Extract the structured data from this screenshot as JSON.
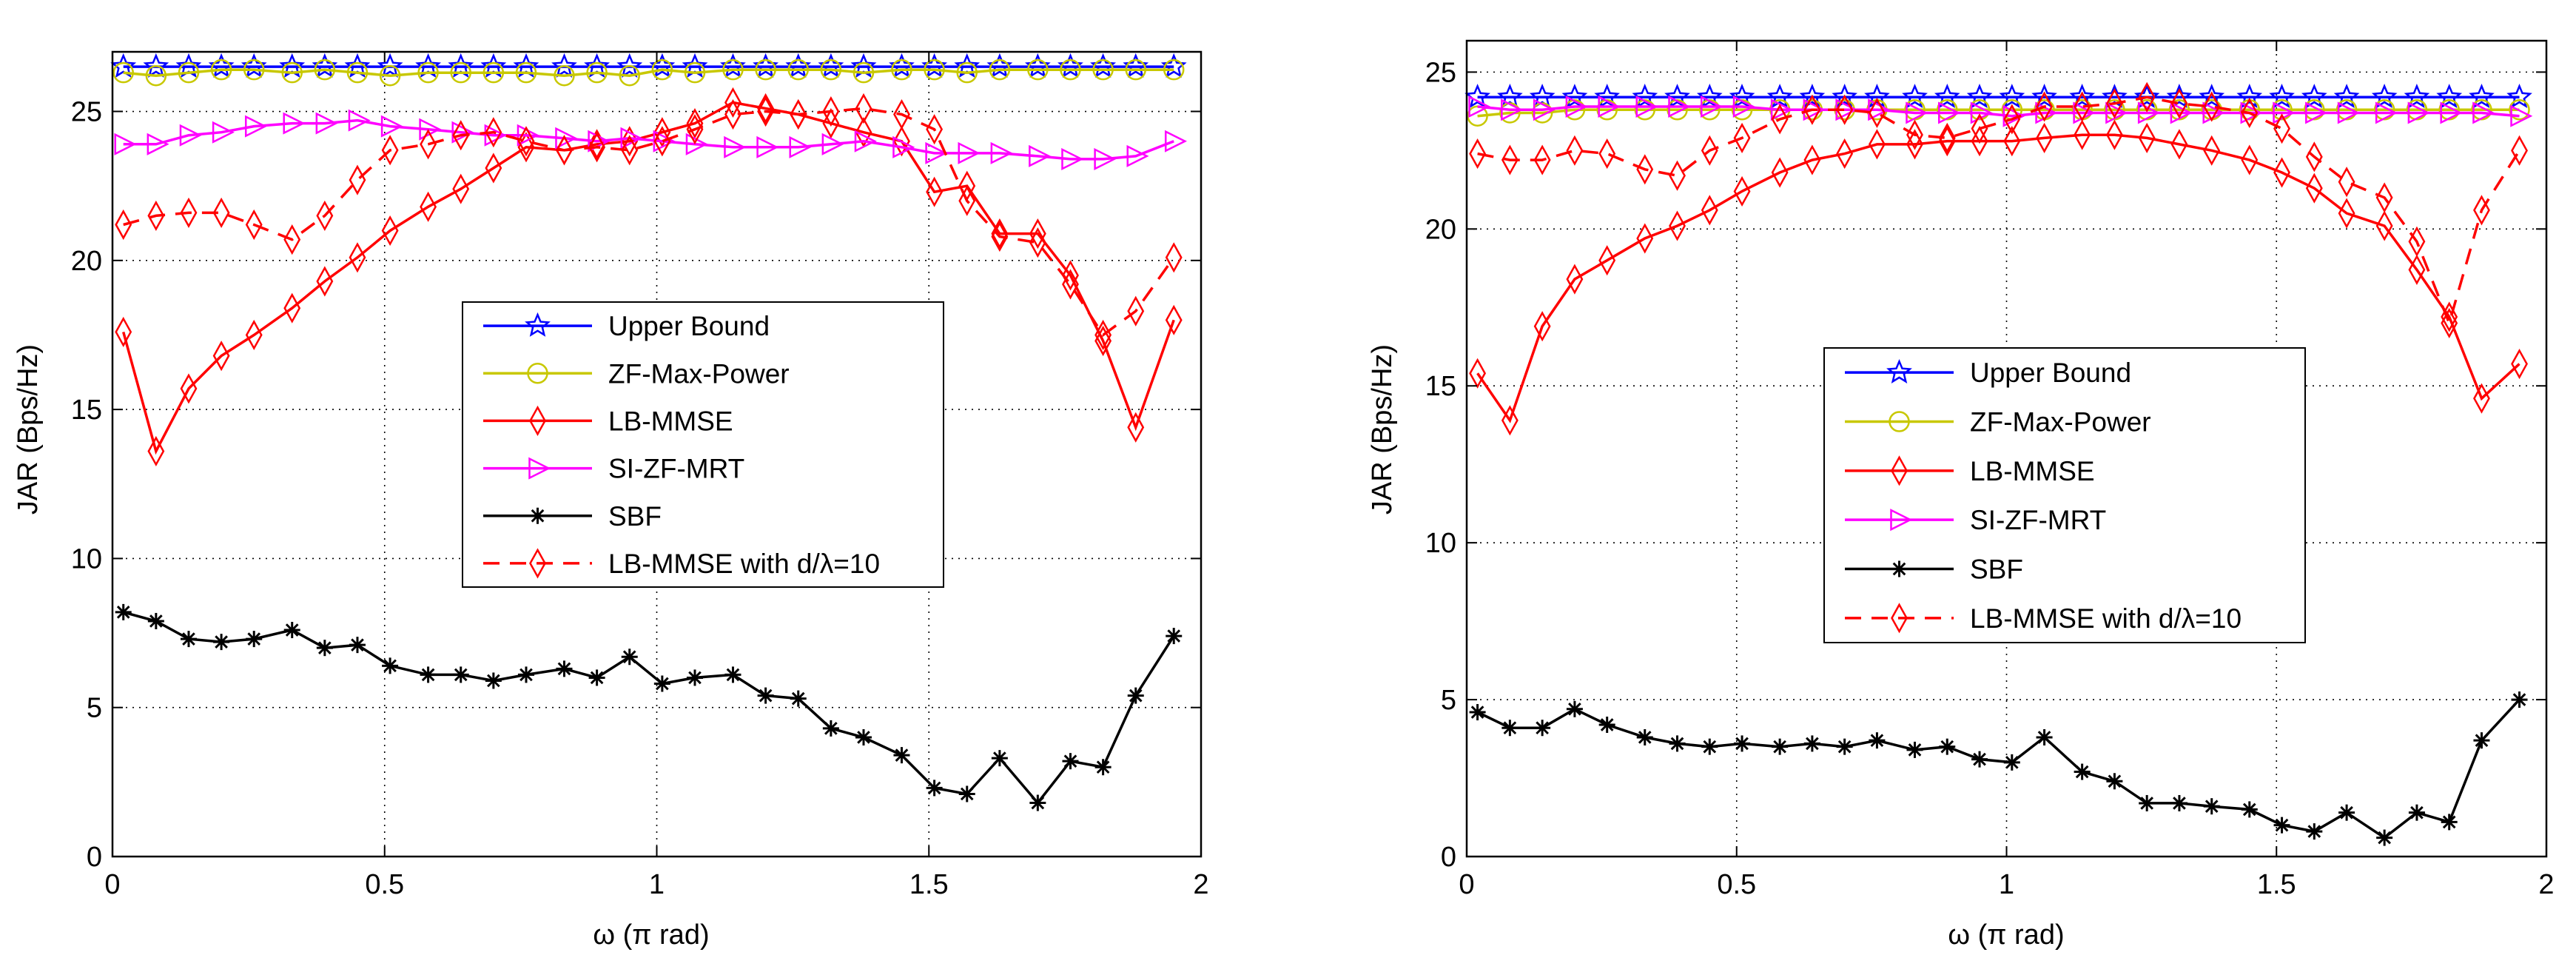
{
  "chart_data": [
    {
      "type": "line",
      "xlabel": "ω (π rad)",
      "ylabel": "JAR (Bps/Hz)",
      "xlim": [
        0,
        2
      ],
      "ylim": [
        0,
        27
      ],
      "xticks": [
        0,
        0.5,
        1,
        1.5,
        2
      ],
      "xtick_labels": [
        "0",
        "0.5",
        "1",
        "1.5",
        "2"
      ],
      "yticks": [
        0,
        5,
        10,
        15,
        20,
        25
      ],
      "ytick_labels": [
        "0",
        "5",
        "10",
        "15",
        "20",
        "25"
      ],
      "grid": true,
      "legend_position": "center-right",
      "x": [
        0.02,
        0.08,
        0.14,
        0.2,
        0.26,
        0.33,
        0.39,
        0.45,
        0.51,
        0.58,
        0.64,
        0.7,
        0.76,
        0.83,
        0.89,
        0.95,
        1.01,
        1.07,
        1.14,
        1.2,
        1.26,
        1.32,
        1.38,
        1.45,
        1.51,
        1.57,
        1.63,
        1.7,
        1.76,
        1.82,
        1.88,
        1.95
      ],
      "series": [
        {
          "name": "Upper Bound",
          "color": "#0000ff",
          "marker": "star",
          "dash": "solid",
          "values": [
            26.5,
            26.5,
            26.5,
            26.5,
            26.5,
            26.5,
            26.5,
            26.5,
            26.5,
            26.5,
            26.5,
            26.5,
            26.5,
            26.5,
            26.5,
            26.5,
            26.5,
            26.5,
            26.5,
            26.5,
            26.5,
            26.5,
            26.5,
            26.5,
            26.5,
            26.5,
            26.5,
            26.5,
            26.5,
            26.5,
            26.5,
            26.5
          ]
        },
        {
          "name": "ZF-Max-Power",
          "color": "#c8c800",
          "marker": "circle",
          "dash": "solid",
          "values": [
            26.3,
            26.2,
            26.3,
            26.4,
            26.4,
            26.3,
            26.4,
            26.3,
            26.2,
            26.3,
            26.3,
            26.3,
            26.3,
            26.2,
            26.3,
            26.2,
            26.4,
            26.3,
            26.4,
            26.4,
            26.4,
            26.4,
            26.3,
            26.4,
            26.4,
            26.3,
            26.4,
            26.4,
            26.4,
            26.4,
            26.4,
            26.4
          ]
        },
        {
          "name": "LB-MMSE",
          "color": "#ff0000",
          "marker": "diamond",
          "dash": "solid",
          "values": [
            17.6,
            13.6,
            15.7,
            16.8,
            17.5,
            18.4,
            19.3,
            20.1,
            21.0,
            21.8,
            22.4,
            23.1,
            23.8,
            23.7,
            23.9,
            24.0,
            24.3,
            24.6,
            25.3,
            25.1,
            24.9,
            24.6,
            24.3,
            24.0,
            22.3,
            22.5,
            20.9,
            20.9,
            19.5,
            17.3,
            14.4,
            18.0
          ]
        },
        {
          "name": "SI-ZF-MRT",
          "color": "#ff00ff",
          "marker": "triangle-right",
          "dash": "solid",
          "values": [
            23.9,
            23.9,
            24.2,
            24.3,
            24.5,
            24.6,
            24.6,
            24.7,
            24.5,
            24.4,
            24.3,
            24.2,
            24.2,
            24.1,
            24.0,
            24.1,
            24.0,
            23.9,
            23.8,
            23.8,
            23.8,
            23.9,
            24.0,
            23.8,
            23.6,
            23.6,
            23.6,
            23.5,
            23.4,
            23.4,
            23.5,
            24.0
          ]
        },
        {
          "name": "SBF",
          "color": "#000000",
          "marker": "asterisk",
          "dash": "solid",
          "values": [
            8.2,
            7.9,
            7.3,
            7.2,
            7.3,
            7.6,
            7.0,
            7.1,
            6.4,
            6.1,
            6.1,
            5.9,
            6.1,
            6.3,
            6.0,
            6.7,
            5.8,
            6.0,
            6.1,
            5.4,
            5.3,
            4.3,
            4.0,
            3.4,
            2.3,
            2.1,
            3.3,
            1.8,
            3.2,
            3.0,
            5.4,
            7.4
          ]
        },
        {
          "name": "LB-MMSE with d/λ=10",
          "color": "#ff0000",
          "marker": "diamond",
          "dash": "dashed",
          "values": [
            21.2,
            21.5,
            21.6,
            21.6,
            21.2,
            20.7,
            21.5,
            22.7,
            23.7,
            23.9,
            24.2,
            24.3,
            24.0,
            23.7,
            23.8,
            23.7,
            24.0,
            24.4,
            24.9,
            25.0,
            24.9,
            25.0,
            25.1,
            24.9,
            24.4,
            22.0,
            20.8,
            20.6,
            19.2,
            17.5,
            18.3,
            20.1
          ]
        }
      ]
    },
    {
      "type": "line",
      "xlabel": "ω (π rad)",
      "ylabel": "JAR (Bps/Hz)",
      "xlim": [
        0,
        2
      ],
      "ylim": [
        0,
        26
      ],
      "xticks": [
        0,
        0.5,
        1,
        1.5,
        2
      ],
      "xtick_labels": [
        "0",
        "0.5",
        "1",
        "1.5",
        "2"
      ],
      "yticks": [
        0,
        5,
        10,
        15,
        20,
        25
      ],
      "ytick_labels": [
        "0",
        "5",
        "10",
        "15",
        "20",
        "25"
      ],
      "grid": true,
      "legend_position": "center-right",
      "x": [
        0.02,
        0.08,
        0.14,
        0.2,
        0.26,
        0.33,
        0.39,
        0.45,
        0.51,
        0.58,
        0.64,
        0.7,
        0.76,
        0.83,
        0.89,
        0.95,
        1.01,
        1.07,
        1.14,
        1.2,
        1.26,
        1.32,
        1.38,
        1.45,
        1.51,
        1.57,
        1.63,
        1.7,
        1.76,
        1.82,
        1.88,
        1.95
      ],
      "series": [
        {
          "name": "Upper Bound",
          "color": "#0000ff",
          "marker": "star",
          "dash": "solid",
          "values": [
            24.2,
            24.2,
            24.2,
            24.2,
            24.2,
            24.2,
            24.2,
            24.2,
            24.2,
            24.2,
            24.2,
            24.2,
            24.2,
            24.2,
            24.2,
            24.2,
            24.2,
            24.2,
            24.2,
            24.2,
            24.2,
            24.2,
            24.2,
            24.2,
            24.2,
            24.2,
            24.2,
            24.2,
            24.2,
            24.2,
            24.2,
            24.2
          ]
        },
        {
          "name": "ZF-Max-Power",
          "color": "#c8c800",
          "marker": "circle",
          "dash": "solid",
          "values": [
            23.6,
            23.7,
            23.7,
            23.8,
            23.8,
            23.8,
            23.8,
            23.8,
            23.8,
            23.8,
            23.8,
            23.8,
            23.8,
            23.8,
            23.8,
            23.8,
            23.8,
            23.8,
            23.8,
            23.8,
            23.8,
            23.8,
            23.8,
            23.8,
            23.8,
            23.8,
            23.8,
            23.8,
            23.8,
            23.8,
            23.8,
            23.8
          ]
        },
        {
          "name": "LB-MMSE",
          "color": "#ff0000",
          "marker": "diamond",
          "dash": "solid",
          "values": [
            15.4,
            13.9,
            16.9,
            18.4,
            19.0,
            19.7,
            20.1,
            20.6,
            21.2,
            21.8,
            22.2,
            22.4,
            22.7,
            22.7,
            22.8,
            22.8,
            22.8,
            22.9,
            23.0,
            23.0,
            22.9,
            22.7,
            22.5,
            22.2,
            21.8,
            21.3,
            20.5,
            20.1,
            18.7,
            17.2,
            14.6,
            15.7
          ]
        },
        {
          "name": "SI-ZF-MRT",
          "color": "#ff00ff",
          "marker": "triangle-right",
          "dash": "solid",
          "values": [
            23.9,
            23.8,
            23.8,
            23.9,
            23.9,
            23.9,
            23.9,
            23.9,
            23.9,
            23.8,
            23.8,
            23.8,
            23.8,
            23.7,
            23.7,
            23.7,
            23.6,
            23.7,
            23.7,
            23.7,
            23.7,
            23.7,
            23.7,
            23.7,
            23.7,
            23.7,
            23.7,
            23.7,
            23.7,
            23.7,
            23.7,
            23.6
          ]
        },
        {
          "name": "SBF",
          "color": "#000000",
          "marker": "asterisk",
          "dash": "solid",
          "values": [
            4.6,
            4.1,
            4.1,
            4.7,
            4.2,
            3.8,
            3.6,
            3.5,
            3.6,
            3.5,
            3.6,
            3.5,
            3.7,
            3.4,
            3.5,
            3.1,
            3.0,
            3.8,
            2.7,
            2.4,
            1.7,
            1.7,
            1.6,
            1.5,
            1.0,
            0.8,
            1.4,
            0.6,
            1.4,
            1.1,
            3.7,
            5.0
          ]
        },
        {
          "name": "LB-MMSE with d/λ=10",
          "color": "#ff0000",
          "marker": "diamond",
          "dash": "dashed",
          "values": [
            22.4,
            22.2,
            22.2,
            22.5,
            22.4,
            21.9,
            21.7,
            22.5,
            22.9,
            23.5,
            23.8,
            23.8,
            23.7,
            23.0,
            22.9,
            23.2,
            23.5,
            23.9,
            23.9,
            24.0,
            24.2,
            24.0,
            23.9,
            23.7,
            23.2,
            22.3,
            21.5,
            21.0,
            19.6,
            17.0,
            20.6,
            22.5
          ]
        }
      ]
    }
  ]
}
